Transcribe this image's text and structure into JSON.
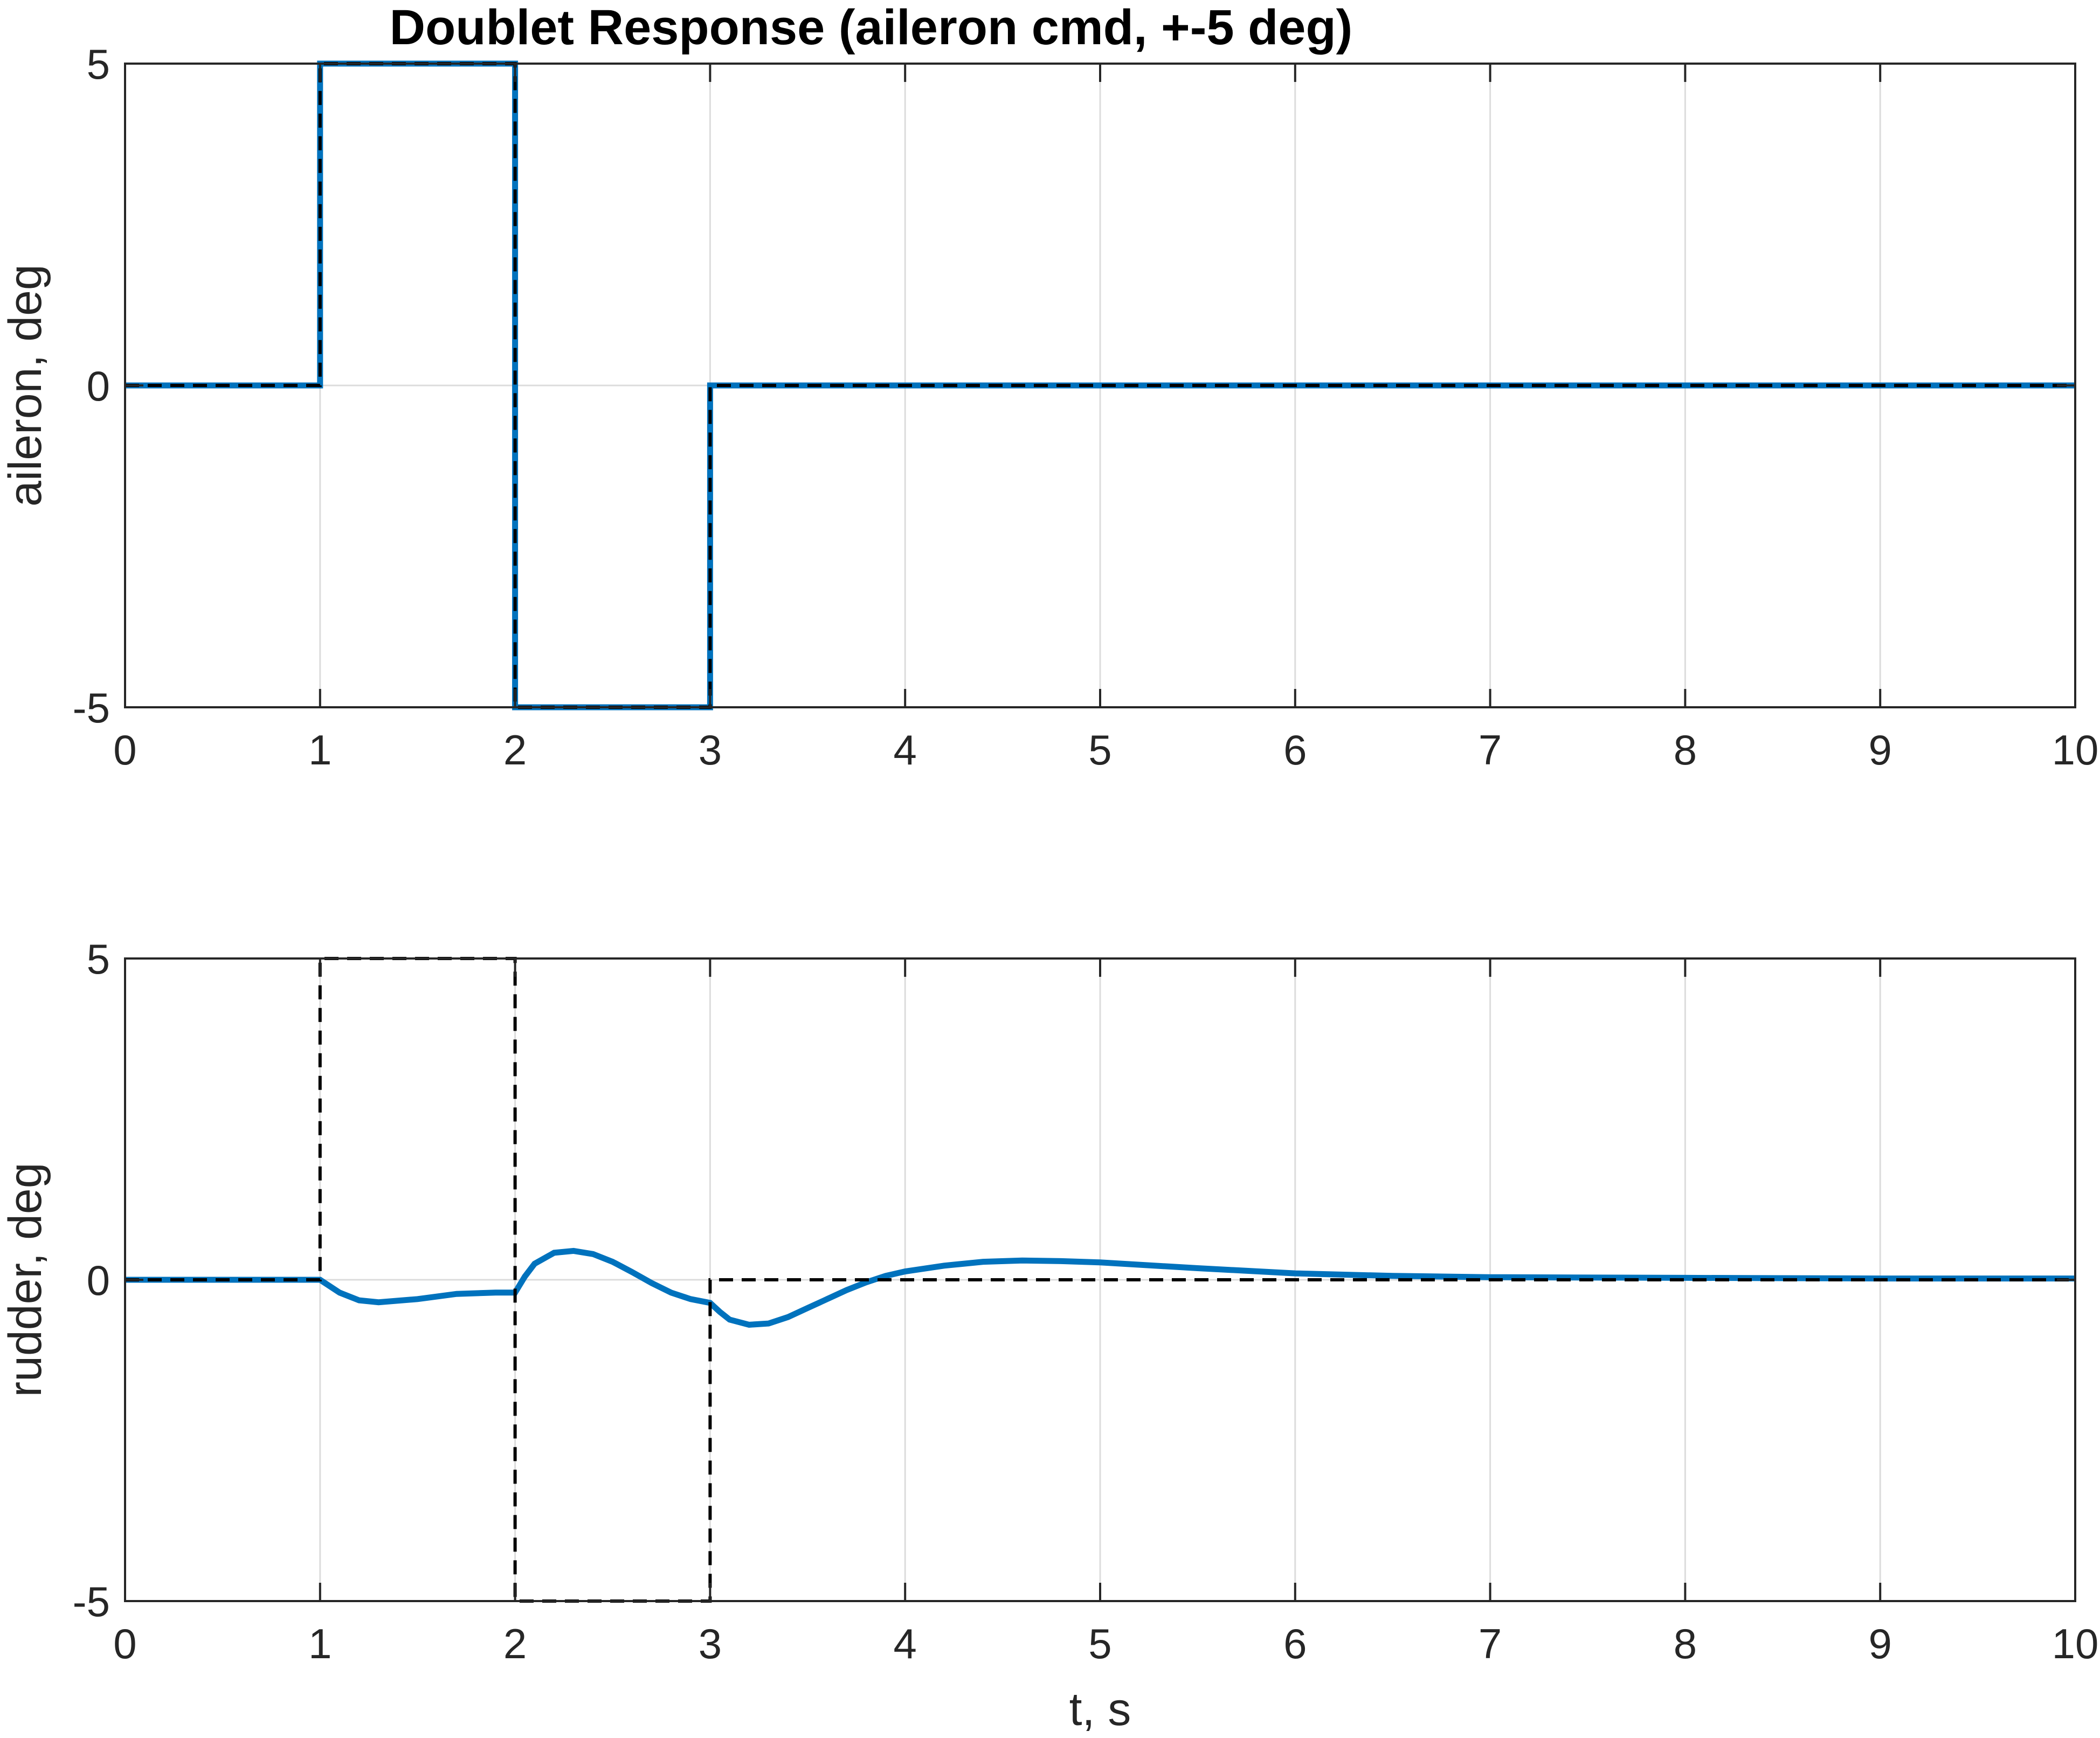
{
  "figure": {
    "title": "Doublet Response (aileron cmd, +-5 deg)"
  },
  "chart_data": [
    {
      "type": "line",
      "title": "Doublet Response (aileron cmd, +-5 deg)",
      "xlabel": "",
      "ylabel": "aileron, deg",
      "xlim": [
        0,
        10
      ],
      "ylim": [
        -5,
        5
      ],
      "xticks": [
        "0",
        "1",
        "2",
        "3",
        "4",
        "5",
        "6",
        "7",
        "8",
        "9",
        "10"
      ],
      "yticks": [
        "-5",
        "0",
        "5"
      ],
      "grid": true,
      "series": [
        {
          "style": "solid",
          "color": "#0072BD",
          "x": [
            0,
            1,
            1,
            2,
            2,
            3,
            3,
            10
          ],
          "y": [
            0,
            0,
            5,
            5,
            -5,
            -5,
            0,
            0
          ]
        },
        {
          "style": "dashed",
          "color": "#000000",
          "x": [
            0,
            1,
            1,
            2,
            2,
            3,
            3,
            10
          ],
          "y": [
            0,
            0,
            5,
            5,
            -5,
            -5,
            0,
            0
          ]
        }
      ]
    },
    {
      "type": "line",
      "title": "",
      "xlabel": "t, s",
      "ylabel": "rudder, deg",
      "xlim": [
        0,
        10
      ],
      "ylim": [
        -5,
        5
      ],
      "xticks": [
        "0",
        "1",
        "2",
        "3",
        "4",
        "5",
        "6",
        "7",
        "8",
        "9",
        "10"
      ],
      "yticks": [
        "-5",
        "0",
        "5"
      ],
      "grid": true,
      "series": [
        {
          "style": "solid",
          "color": "#0072BD",
          "x": [
            0,
            1,
            1.1,
            1.2,
            1.3,
            1.5,
            1.7,
            1.9,
            2,
            2.05,
            2.1,
            2.2,
            2.3,
            2.4,
            2.5,
            2.6,
            2.7,
            2.8,
            2.9,
            3,
            3.05,
            3.1,
            3.2,
            3.3,
            3.4,
            3.5,
            3.6,
            3.7,
            3.8,
            3.9,
            4,
            4.2,
            4.4,
            4.6,
            4.8,
            5,
            5.5,
            6,
            6.5,
            7,
            8,
            9,
            10
          ],
          "y": [
            0,
            0,
            -0.2,
            -0.32,
            -0.35,
            -0.3,
            -0.22,
            -0.2,
            -0.2,
            0.05,
            0.25,
            0.42,
            0.45,
            0.4,
            0.28,
            0.12,
            -0.05,
            -0.2,
            -0.3,
            -0.36,
            -0.5,
            -0.62,
            -0.7,
            -0.68,
            -0.58,
            -0.44,
            -0.3,
            -0.16,
            -0.04,
            0.06,
            0.13,
            0.22,
            0.28,
            0.3,
            0.29,
            0.27,
            0.18,
            0.1,
            0.06,
            0.04,
            0.03,
            0.02,
            0.02
          ]
        },
        {
          "style": "dashed",
          "color": "#000000",
          "x": [
            0,
            1,
            1,
            2,
            2,
            3,
            3,
            10
          ],
          "y": [
            0,
            0,
            5,
            5,
            -5,
            -5,
            0,
            0
          ]
        }
      ]
    }
  ]
}
